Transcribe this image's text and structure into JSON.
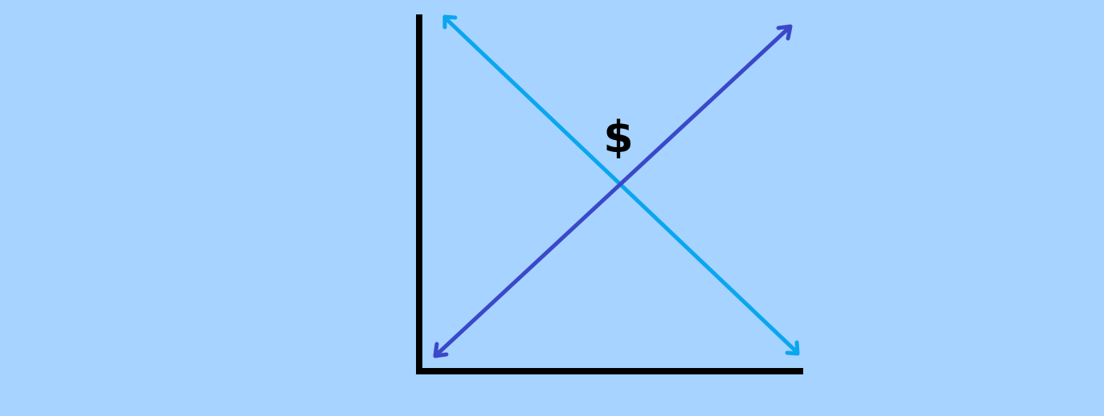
{
  "diagram": {
    "symbol_label": "$",
    "colors": {
      "background": "#a6d3ff",
      "axes": "#000000",
      "line_descending": "#0aa6ee",
      "line_ascending": "#3b48c8",
      "label": "#000000"
    }
  }
}
